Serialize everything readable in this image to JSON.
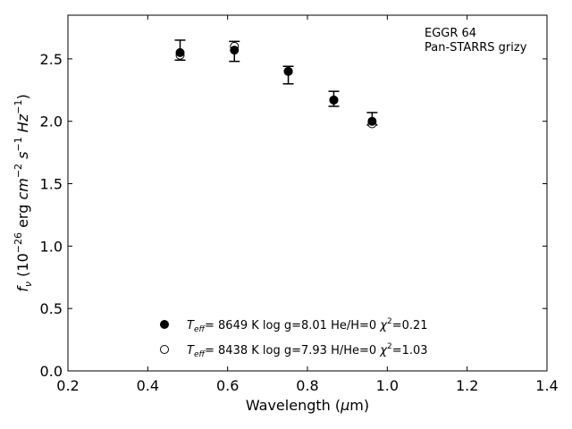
{
  "chart_data": {
    "type": "scatter",
    "annotation": {
      "line1": "EGGR 64",
      "line2": "Pan-STARRS grizy"
    },
    "xlabel": "Wavelength (μm)",
    "ylabel": "f_ν (10^-26 erg cm^-2 s^-1 Hz^-1)",
    "xlim": [
      0.2,
      1.4
    ],
    "ylim": [
      0.0,
      2.85
    ],
    "xticks": [
      "0.2",
      "0.4",
      "0.6",
      "0.8",
      "1.0",
      "1.2",
      "1.4"
    ],
    "yticks": [
      "0.0",
      "0.5",
      "1.0",
      "1.5",
      "2.0",
      "2.5"
    ],
    "grid": false,
    "legend_position": "bottom-center",
    "observed": {
      "x": [
        0.481,
        0.617,
        0.752,
        0.866,
        0.962
      ],
      "y": [
        2.57,
        2.56,
        2.37,
        2.18,
        2.02
      ],
      "yerr": [
        0.08,
        0.08,
        0.07,
        0.06,
        0.05
      ]
    },
    "series": [
      {
        "name": "T_eff= 8649 K  log g=8.01  He/H=0  χ²=0.21",
        "marker": "filled",
        "x": [
          0.481,
          0.617,
          0.752,
          0.866,
          0.962
        ],
        "y": [
          2.55,
          2.57,
          2.4,
          2.17,
          2.0
        ]
      },
      {
        "name": "T_eff= 8438 K  log g=7.93  H/He=0  χ²=1.03",
        "marker": "open",
        "x": [
          0.481,
          0.617,
          0.752,
          0.866,
          0.962
        ],
        "y": [
          2.53,
          2.6,
          2.4,
          2.17,
          1.98
        ]
      }
    ]
  }
}
